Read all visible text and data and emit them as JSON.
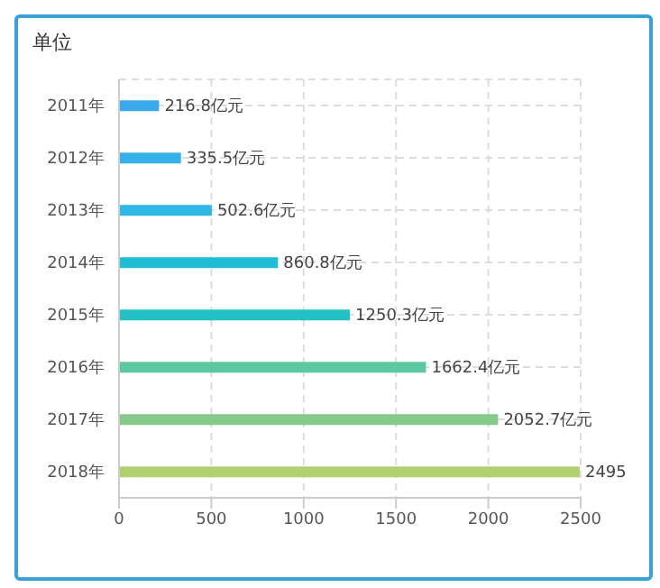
{
  "chart_data": {
    "type": "bar",
    "orientation": "horizontal",
    "title": "单位",
    "categories": [
      "2011年",
      "2012年",
      "2013年",
      "2014年",
      "2015年",
      "2016年",
      "2017年",
      "2018年"
    ],
    "values": [
      216.8,
      335.5,
      502.6,
      860.8,
      1250.3,
      1662.4,
      2052.7,
      2495
    ],
    "colors": [
      "#3aa8ec",
      "#36b0e8",
      "#2fb8e3",
      "#20bcd6",
      "#25c0c4",
      "#5cc8a0",
      "#86c98a",
      "#b0d070"
    ],
    "value_labels": [
      "216.8亿元",
      "335.5亿元",
      "502.6亿元",
      "860.8亿元",
      "1250.3亿元",
      "1662.4亿元",
      "2052.7亿元",
      "2495"
    ],
    "xlim": [
      0,
      2500
    ],
    "xticks": [
      0,
      500,
      1000,
      1500,
      2000,
      2500
    ],
    "grid": true
  }
}
